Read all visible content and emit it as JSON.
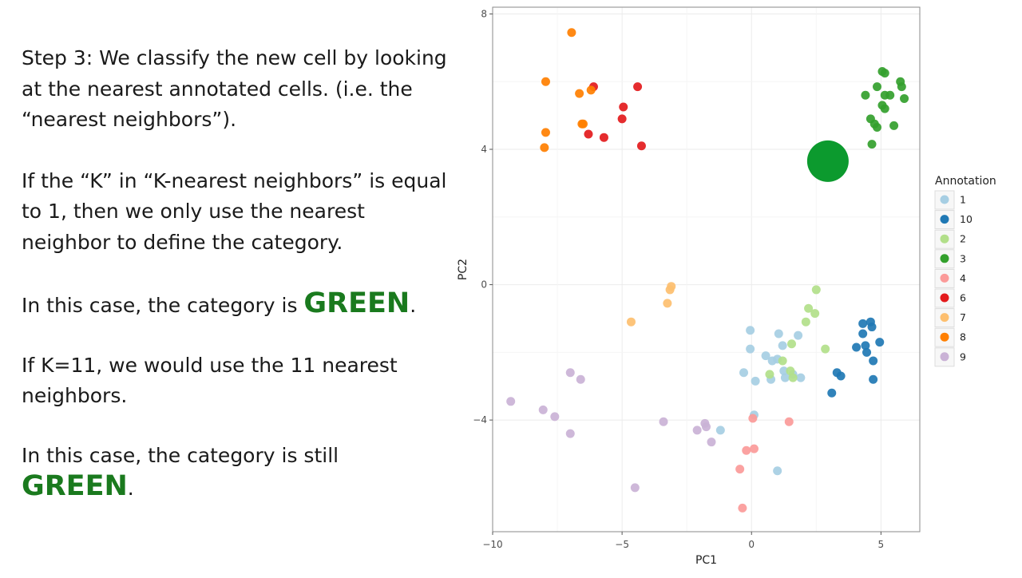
{
  "slide": {
    "step_text": "Step 3: We classify the new cell by looking at the nearest annotated cells. (i.e. the “nearest neighbors”).",
    "k_text": "If the “K” in “K-nearest neighbors” is equal to 1, then we only use the nearest neighbor to define the category.",
    "case1_prefix": "In this case, the category is ",
    "case1_word": "GREEN",
    "case1_suffix": ".",
    "k11_text": "If K=11, we would use the 11 nearest neighbors.",
    "case2_prefix": "In this case, the category is still ",
    "case2_word": "GREEN",
    "case2_suffix": "."
  },
  "colors": {
    "green_text": "#1a7a1e",
    "panel_border": "#8a8a8a",
    "grid": "#ebebeb"
  },
  "chart_data": {
    "type": "scatter",
    "title": "",
    "xlabel": "PC1",
    "ylabel": "PC2",
    "xlim": [
      -10,
      6.5
    ],
    "ylim": [
      -7.3,
      8.2
    ],
    "xticks": [
      -10,
      -5,
      0,
      5
    ],
    "yticks": [
      -4,
      0,
      4,
      8
    ],
    "x_tick_labels": [
      "−10",
      "−5",
      "0",
      "5"
    ],
    "y_tick_labels": [
      "−4",
      "0",
      "4",
      "8"
    ],
    "grid": true,
    "legend_title": "Annotation",
    "legend_position": "right",
    "new_cell": {
      "x": 2.95,
      "y": 3.65,
      "color": "#0c9a2e"
    },
    "series": [
      {
        "name": "1",
        "color": "#a6cee3",
        "points": [
          [
            -0.05,
            -1.35
          ],
          [
            -0.05,
            -1.9
          ],
          [
            -0.3,
            -2.6
          ],
          [
            0.15,
            -2.85
          ],
          [
            0.55,
            -2.1
          ],
          [
            0.8,
            -2.25
          ],
          [
            0.75,
            -2.8
          ],
          [
            1.0,
            -2.2
          ],
          [
            1.05,
            -1.45
          ],
          [
            1.2,
            -1.8
          ],
          [
            1.25,
            -2.55
          ],
          [
            1.3,
            -2.75
          ],
          [
            1.8,
            -1.5
          ],
          [
            1.6,
            -2.65
          ],
          [
            1.9,
            -2.75
          ],
          [
            0.1,
            -3.85
          ],
          [
            -1.2,
            -4.3
          ],
          [
            1.0,
            -5.5
          ]
        ]
      },
      {
        "name": "10",
        "color": "#1f78b4",
        "points": [
          [
            4.3,
            -1.15
          ],
          [
            4.6,
            -1.1
          ],
          [
            4.65,
            -1.25
          ],
          [
            4.3,
            -1.45
          ],
          [
            4.05,
            -1.85
          ],
          [
            4.4,
            -1.8
          ],
          [
            4.45,
            -2.0
          ],
          [
            4.95,
            -1.7
          ],
          [
            4.7,
            -2.25
          ],
          [
            3.3,
            -2.6
          ],
          [
            3.45,
            -2.7
          ],
          [
            4.7,
            -2.8
          ],
          [
            3.1,
            -3.2
          ]
        ]
      },
      {
        "name": "2",
        "color": "#b2df8a",
        "points": [
          [
            2.5,
            -0.15
          ],
          [
            2.2,
            -0.7
          ],
          [
            2.45,
            -0.85
          ],
          [
            2.1,
            -1.1
          ],
          [
            1.55,
            -1.75
          ],
          [
            2.85,
            -1.9
          ],
          [
            1.2,
            -2.25
          ],
          [
            0.7,
            -2.65
          ],
          [
            1.5,
            -2.55
          ],
          [
            1.6,
            -2.75
          ]
        ]
      },
      {
        "name": "3",
        "color": "#33a02c",
        "points": [
          [
            5.05,
            6.3
          ],
          [
            5.15,
            6.25
          ],
          [
            5.75,
            6.0
          ],
          [
            5.8,
            5.85
          ],
          [
            4.85,
            5.85
          ],
          [
            4.4,
            5.6
          ],
          [
            5.15,
            5.6
          ],
          [
            5.35,
            5.6
          ],
          [
            5.9,
            5.5
          ],
          [
            5.05,
            5.3
          ],
          [
            5.15,
            5.2
          ],
          [
            4.6,
            4.9
          ],
          [
            4.75,
            4.75
          ],
          [
            4.85,
            4.65
          ],
          [
            5.5,
            4.7
          ],
          [
            4.65,
            4.15
          ]
        ]
      },
      {
        "name": "4",
        "color": "#fb9a99",
        "points": [
          [
            0.05,
            -3.95
          ],
          [
            1.45,
            -4.05
          ],
          [
            0.1,
            -4.85
          ],
          [
            -0.2,
            -4.9
          ],
          [
            -0.45,
            -5.45
          ],
          [
            -0.35,
            -6.6
          ]
        ]
      },
      {
        "name": "6",
        "color": "#e31a1c",
        "points": [
          [
            -6.1,
            5.85
          ],
          [
            -4.4,
            5.85
          ],
          [
            -4.95,
            5.25
          ],
          [
            -5.0,
            4.9
          ],
          [
            -6.3,
            4.45
          ],
          [
            -5.7,
            4.35
          ],
          [
            -4.25,
            4.1
          ]
        ]
      },
      {
        "name": "7",
        "color": "#fdbf6f",
        "points": [
          [
            -3.1,
            -0.05
          ],
          [
            -3.15,
            -0.15
          ],
          [
            -3.25,
            -0.55
          ],
          [
            -4.65,
            -1.1
          ]
        ]
      },
      {
        "name": "8",
        "color": "#ff7f00",
        "points": [
          [
            -6.95,
            7.45
          ],
          [
            -7.95,
            6.0
          ],
          [
            -6.65,
            5.65
          ],
          [
            -6.2,
            5.75
          ],
          [
            -6.55,
            4.75
          ],
          [
            -6.5,
            4.75
          ],
          [
            -7.95,
            4.5
          ],
          [
            -8.0,
            4.05
          ]
        ]
      },
      {
        "name": "9",
        "color": "#cab2d6",
        "points": [
          [
            -7.0,
            -2.6
          ],
          [
            -6.6,
            -2.8
          ],
          [
            -9.3,
            -3.45
          ],
          [
            -8.05,
            -3.7
          ],
          [
            -7.6,
            -3.9
          ],
          [
            -3.4,
            -4.05
          ],
          [
            -1.8,
            -4.1
          ],
          [
            -1.75,
            -4.2
          ],
          [
            -2.1,
            -4.3
          ],
          [
            -7.0,
            -4.4
          ],
          [
            -1.55,
            -4.65
          ],
          [
            -4.5,
            -6.0
          ]
        ]
      }
    ]
  }
}
